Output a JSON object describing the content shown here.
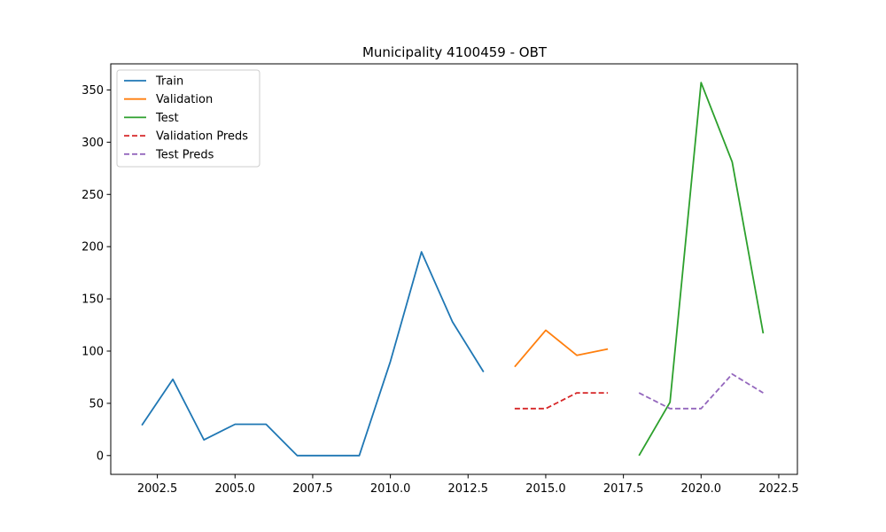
{
  "chart_data": {
    "type": "line",
    "title": "Municipality 4100459 - OBT",
    "xlabel": "",
    "ylabel": "",
    "xlim": [
      2001.0,
      2023.1
    ],
    "ylim": [
      -18,
      375
    ],
    "x_ticks": [
      2002.5,
      2005.0,
      2007.5,
      2010.0,
      2012.5,
      2015.0,
      2017.5,
      2020.0,
      2022.5
    ],
    "x_tick_labels": [
      "2002.5",
      "2005.0",
      "2007.5",
      "2010.0",
      "2012.5",
      "2015.0",
      "2017.5",
      "2020.0",
      "2022.5"
    ],
    "y_ticks": [
      0,
      50,
      100,
      150,
      200,
      250,
      300,
      350
    ],
    "y_tick_labels": [
      "0",
      "50",
      "100",
      "150",
      "200",
      "250",
      "300",
      "350"
    ],
    "grid": false,
    "legend_position": "upper-left",
    "series": [
      {
        "name": "Train",
        "color": "#1f77b4",
        "dash": "solid",
        "x": [
          2002,
          2003,
          2004,
          2005,
          2006,
          2007,
          2008,
          2009,
          2010,
          2011,
          2012,
          2013
        ],
        "values": [
          29,
          73,
          15,
          30,
          30,
          0,
          0,
          0,
          90,
          195,
          128,
          80
        ]
      },
      {
        "name": "Validation",
        "color": "#ff7f0e",
        "dash": "solid",
        "x": [
          2014,
          2015,
          2016,
          2017
        ],
        "values": [
          85,
          120,
          96,
          102
        ]
      },
      {
        "name": "Test",
        "color": "#2ca02c",
        "dash": "solid",
        "x": [
          2018,
          2019,
          2020,
          2021,
          2022
        ],
        "values": [
          0,
          51,
          357,
          281,
          117
        ]
      },
      {
        "name": "Validation Preds",
        "color": "#d62728",
        "dash": "dashed",
        "x": [
          2014,
          2015,
          2016,
          2017
        ],
        "values": [
          45,
          45,
          60,
          60
        ]
      },
      {
        "name": "Test Preds",
        "color": "#9467bd",
        "dash": "dashed",
        "x": [
          2018,
          2019,
          2020,
          2021,
          2022
        ],
        "values": [
          60,
          45,
          45,
          78,
          60
        ]
      }
    ]
  }
}
